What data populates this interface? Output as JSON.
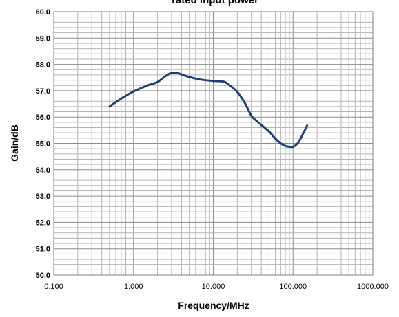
{
  "chart_data": {
    "type": "line",
    "title": "rated input power",
    "xlabel": "Frequency/MHz",
    "ylabel": "Gain/dB",
    "x_scale": "log",
    "xlim": [
      0.1,
      1000
    ],
    "ylim": [
      50,
      60
    ],
    "grid": true,
    "legend": "none",
    "x_tick_labels": [
      "0.100",
      "1.000",
      "10.000",
      "100.000",
      "1000.000"
    ],
    "y_tick_labels": [
      "50.0",
      "51.0",
      "52.0",
      "53.0",
      "54.0",
      "55.0",
      "56.0",
      "57.0",
      "58.0",
      "59.0",
      "60.0"
    ],
    "series": [
      {
        "color": "#1f3f73",
        "x": [
          0.5,
          0.7,
          1.0,
          1.5,
          2.0,
          2.5,
          3.0,
          3.5,
          4.0,
          5.0,
          7.0,
          10.0,
          13.0,
          15.0,
          20.0,
          25.0,
          30.0,
          35.0,
          40.0,
          50.0,
          60.0,
          70.0,
          80.0,
          90.0,
          100.0,
          110.0,
          120.0,
          130.0,
          150.0
        ],
        "y": [
          56.4,
          56.7,
          56.97,
          57.2,
          57.33,
          57.55,
          57.68,
          57.68,
          57.62,
          57.52,
          57.42,
          57.37,
          57.35,
          57.27,
          56.95,
          56.52,
          56.05,
          55.85,
          55.7,
          55.45,
          55.18,
          55.0,
          54.9,
          54.87,
          54.87,
          54.95,
          55.1,
          55.3,
          55.68
        ]
      }
    ]
  }
}
